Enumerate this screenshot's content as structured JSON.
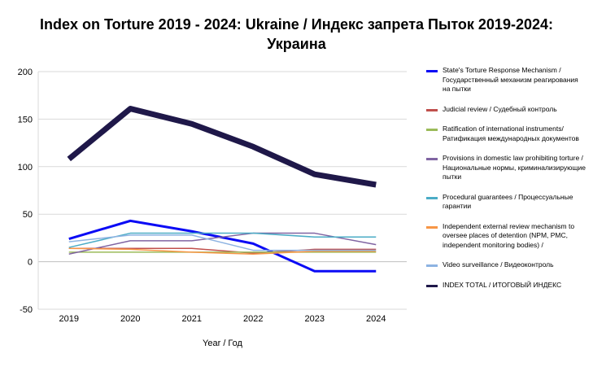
{
  "title_line1": "Index on Torture 2019 - 2024: Ukraine / Индекс запрета Пыток 2019-2024:",
  "title_line2": "Украина",
  "chart_data": {
    "type": "line",
    "title": "Index on Torture 2019 - 2024: Ukraine / Индекс запрета Пыток 2019-2024: Украина",
    "xlabel": "Year / Год",
    "ylabel": "",
    "x": [
      "2019",
      "2020",
      "2021",
      "2022",
      "2023",
      "2024"
    ],
    "ylim": [
      -50,
      200
    ],
    "yticks": [
      -50,
      0,
      50,
      100,
      150,
      200
    ],
    "grid": true,
    "legend_position": "right",
    "series": [
      {
        "name": "State's Torture Response Mechanism / Государственный механизм реагирования на пытки",
        "color": "#0b0bf5",
        "width": 3,
        "values": [
          24,
          43,
          32,
          19,
          -10,
          -10
        ]
      },
      {
        "name": "Judicial review / Судебный контроль",
        "color": "#c0504d",
        "width": 1.5,
        "values": [
          14,
          14,
          14,
          9,
          13,
          13
        ]
      },
      {
        "name": "Ratification of international instruments/ Ратификация международных документов",
        "color": "#9bbb59",
        "width": 1.5,
        "values": [
          10,
          10,
          10,
          10,
          10,
          10
        ]
      },
      {
        "name": "Provisions in domestic law prohibiting torture / Национальные нормы, криминализирующие пытки",
        "color": "#8064a2",
        "width": 1.5,
        "values": [
          8,
          22,
          22,
          30,
          30,
          18
        ]
      },
      {
        "name": "Procedural guarantees / Процессуальные гарантии",
        "color": "#4bacc6",
        "width": 1.5,
        "values": [
          15,
          30,
          30,
          30,
          26,
          26
        ]
      },
      {
        "name": "Independent external review mechanism to oversee places of detention (NPM, PMC, independent monitoring bodies) /",
        "color": "#f79646",
        "width": 1.5,
        "values": [
          14,
          13,
          10,
          8,
          11,
          11
        ]
      },
      {
        "name": "Video surveillance / Видеоконтроль",
        "color": "#8db3e2",
        "width": 1.5,
        "values": [
          21,
          28,
          28,
          12,
          12,
          12
        ]
      },
      {
        "name": "INDEX TOTAL / ИТОГОВЫЙ ИНДЕКС",
        "color": "#1f1849",
        "width": 7,
        "values": [
          108,
          161,
          145,
          121,
          92,
          81
        ]
      }
    ]
  }
}
